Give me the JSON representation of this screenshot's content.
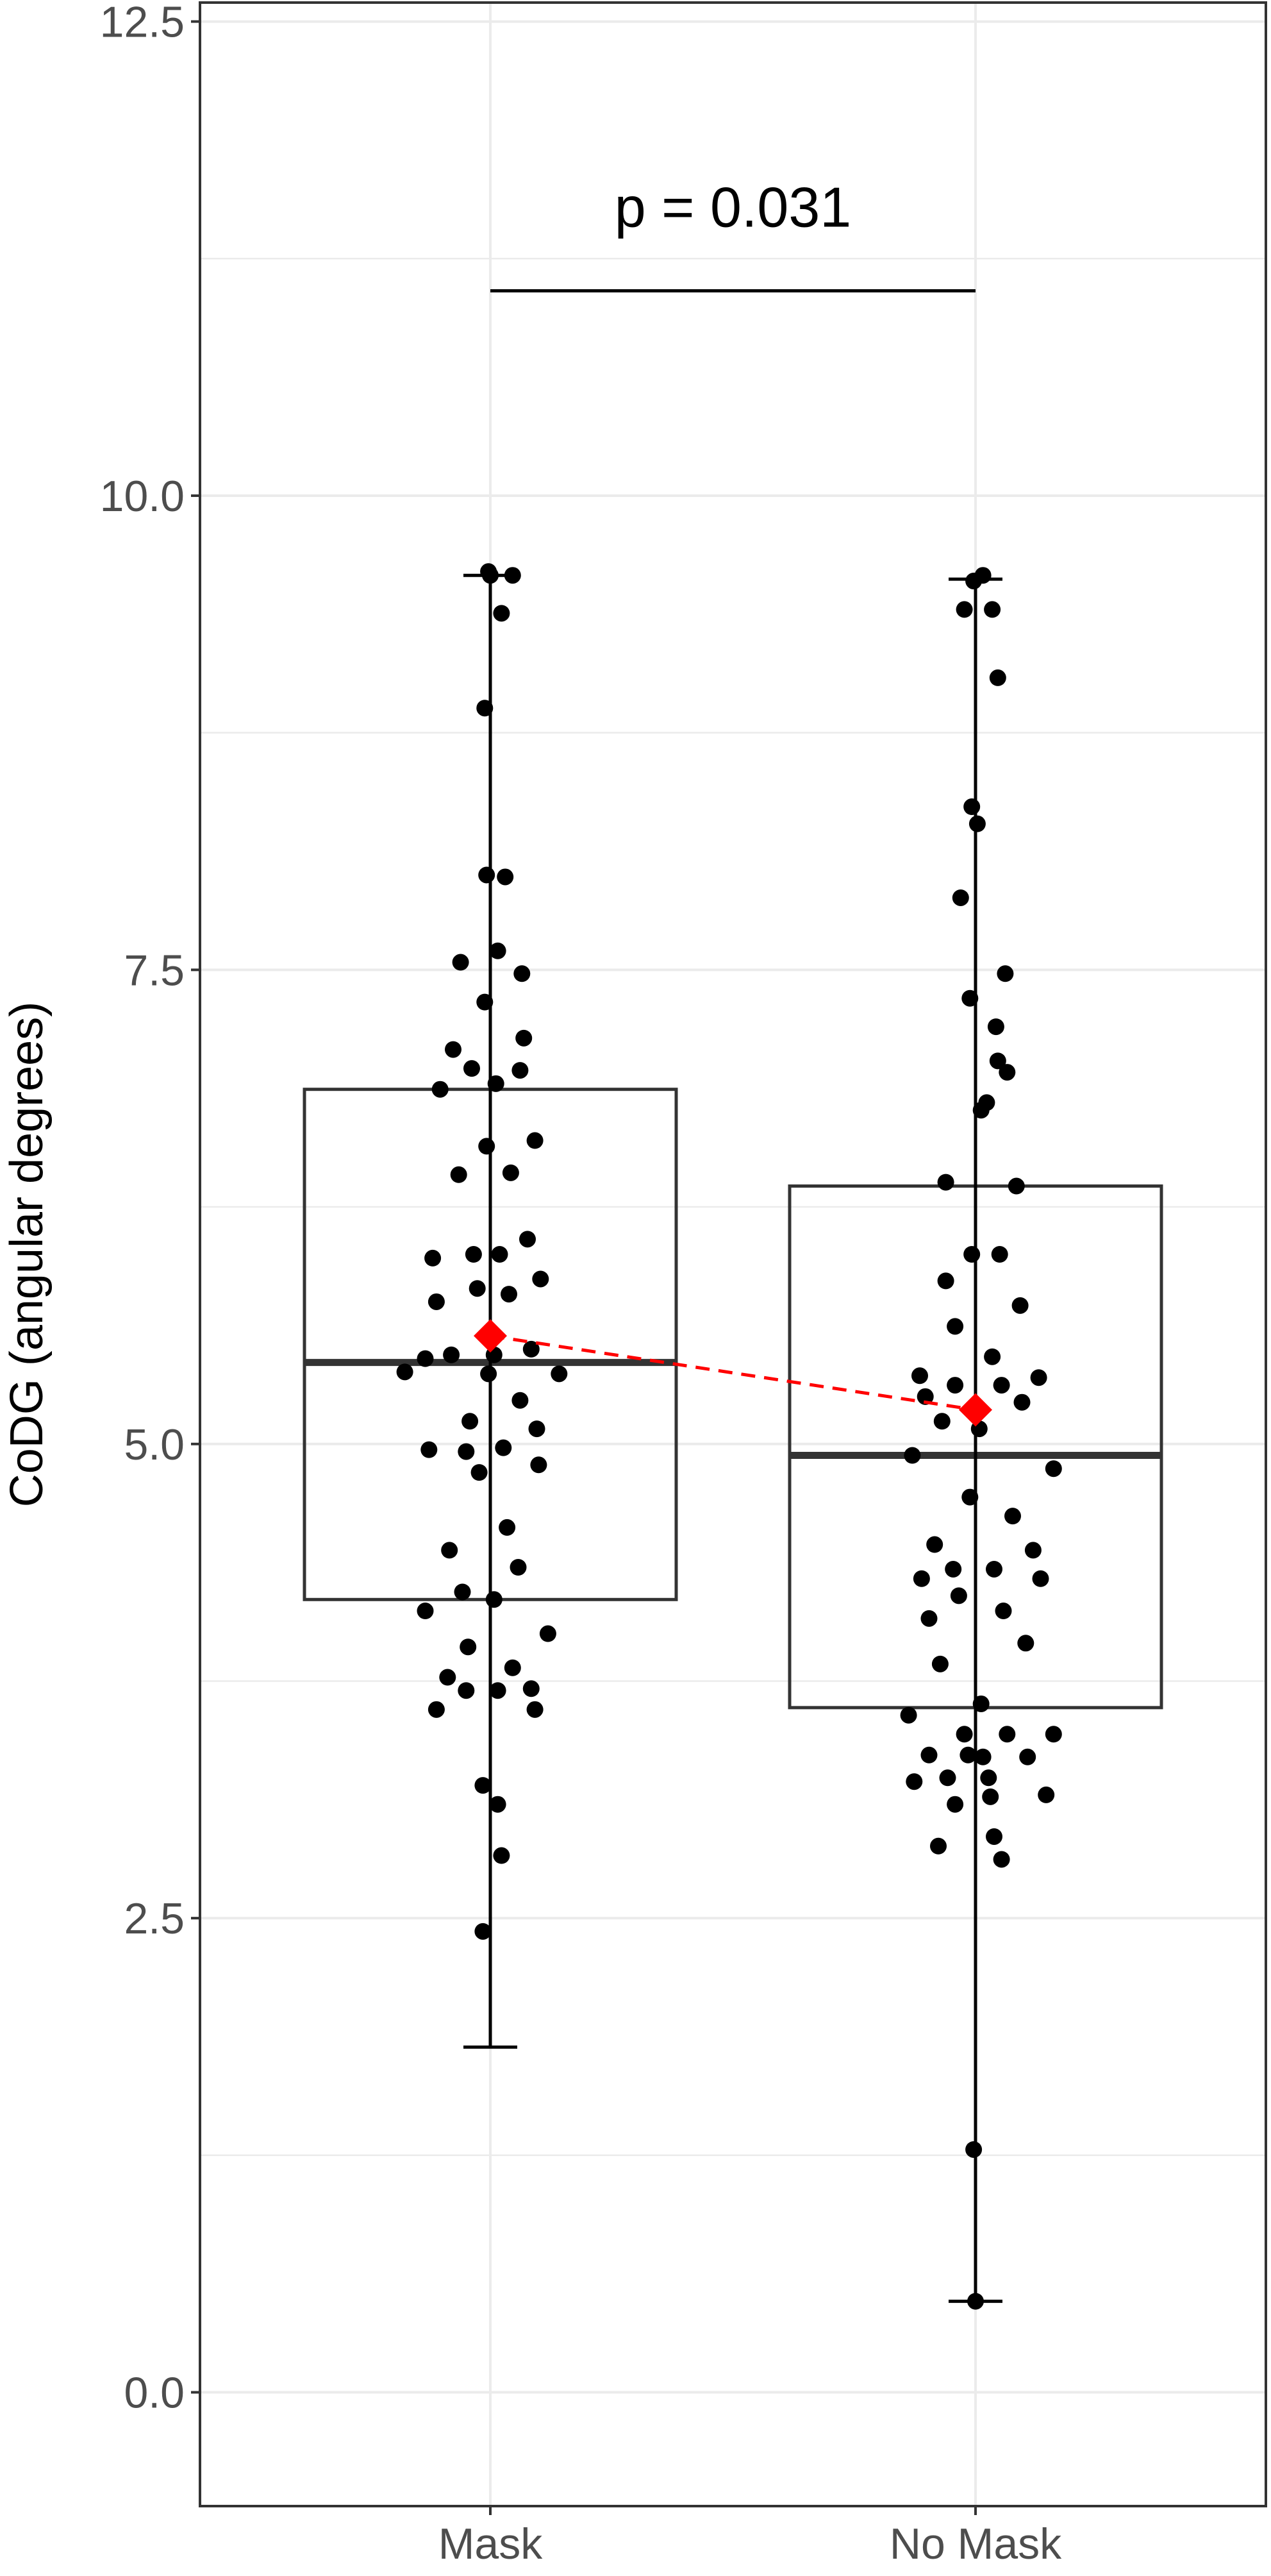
{
  "chart_data": {
    "type": "box",
    "title": "",
    "xlabel": "",
    "ylabel": "CoDG (angular degrees)",
    "ylim": [
      -0.6,
      12.6
    ],
    "yticks": [
      "0.0",
      "2.5",
      "5.0",
      "7.5",
      "10.0",
      "12.5"
    ],
    "grid": true,
    "categories": [
      "Mask",
      "No Mask"
    ],
    "boxes": [
      {
        "category": "Mask",
        "whisker_low": 1.82,
        "q1": 4.18,
        "median": 5.43,
        "q3": 6.87,
        "whisker_high": 9.58,
        "mean": 5.57
      },
      {
        "category": "No Mask",
        "whisker_low": 0.48,
        "q1": 3.61,
        "median": 4.94,
        "q3": 6.36,
        "whisker_high": 9.56,
        "mean": 5.18
      }
    ],
    "points": {
      "Mask": [
        [
          -0.46,
          5.38
        ],
        [
          -0.35,
          4.12
        ],
        [
          -0.29,
          3.6
        ],
        [
          -0.33,
          4.97
        ],
        [
          -0.31,
          5.98
        ],
        [
          -0.29,
          5.75
        ],
        [
          -0.27,
          6.87
        ],
        [
          -0.23,
          3.77
        ],
        [
          -0.22,
          4.44
        ],
        [
          -0.21,
          5.47
        ],
        [
          -0.2,
          7.08
        ],
        [
          -0.17,
          6.42
        ],
        [
          -0.16,
          7.54
        ],
        [
          -0.15,
          4.22
        ],
        [
          -0.13,
          3.7
        ],
        [
          -0.13,
          4.96
        ],
        [
          -0.12,
          3.93
        ],
        [
          -0.11,
          5.12
        ],
        [
          -0.1,
          6.98
        ],
        [
          -0.09,
          6.0
        ],
        [
          -0.07,
          5.82
        ],
        [
          -0.06,
          4.85
        ],
        [
          -0.04,
          3.2
        ],
        [
          -0.04,
          2.43
        ],
        [
          -0.03,
          7.33
        ],
        [
          -0.03,
          8.88
        ],
        [
          -0.02,
          8.0
        ],
        [
          -0.02,
          6.57
        ],
        [
          -0.01,
          5.37
        ],
        [
          -0.01,
          9.6
        ],
        [
          0.0,
          9.58
        ],
        [
          0.02,
          4.18
        ],
        [
          0.02,
          5.47
        ],
        [
          0.03,
          6.9
        ],
        [
          0.04,
          3.7
        ],
        [
          0.04,
          7.6
        ],
        [
          0.04,
          3.1
        ],
        [
          0.05,
          6.0
        ],
        [
          0.06,
          9.38
        ],
        [
          0.06,
          2.83
        ],
        [
          0.07,
          4.98
        ],
        [
          0.08,
          7.99
        ],
        [
          0.09,
          4.56
        ],
        [
          0.1,
          5.79
        ],
        [
          0.11,
          6.43
        ],
        [
          0.12,
          3.82
        ],
        [
          0.12,
          9.58
        ],
        [
          0.15,
          4.35
        ],
        [
          0.16,
          6.97
        ],
        [
          0.16,
          5.23
        ],
        [
          0.17,
          7.48
        ],
        [
          0.18,
          7.14
        ],
        [
          0.2,
          6.08
        ],
        [
          0.22,
          3.71
        ],
        [
          0.22,
          5.5
        ],
        [
          0.24,
          3.6
        ],
        [
          0.24,
          6.6
        ],
        [
          0.25,
          5.08
        ],
        [
          0.26,
          4.89
        ],
        [
          0.27,
          5.87
        ],
        [
          0.31,
          4.0
        ],
        [
          0.37,
          5.37
        ],
        [
          -0.35,
          5.45
        ]
      ],
      "No Mask": [
        [
          -0.36,
          3.57
        ],
        [
          -0.34,
          4.94
        ],
        [
          -0.33,
          3.22
        ],
        [
          -0.3,
          5.36
        ],
        [
          -0.29,
          4.29
        ],
        [
          -0.27,
          5.25
        ],
        [
          -0.25,
          4.08
        ],
        [
          -0.25,
          3.36
        ],
        [
          -0.22,
          4.47
        ],
        [
          -0.2,
          2.88
        ],
        [
          -0.19,
          3.84
        ],
        [
          -0.18,
          5.12
        ],
        [
          -0.16,
          6.38
        ],
        [
          -0.16,
          5.86
        ],
        [
          -0.15,
          3.24
        ],
        [
          -0.12,
          4.34
        ],
        [
          -0.11,
          3.1
        ],
        [
          -0.11,
          5.62
        ],
        [
          -0.11,
          5.31
        ],
        [
          -0.09,
          4.2
        ],
        [
          -0.08,
          7.88
        ],
        [
          -0.06,
          3.47
        ],
        [
          -0.06,
          9.4
        ],
        [
          -0.04,
          3.36
        ],
        [
          -0.03,
          4.72
        ],
        [
          -0.03,
          7.35
        ],
        [
          -0.02,
          8.36
        ],
        [
          -0.02,
          6.0
        ],
        [
          -0.01,
          1.28
        ],
        [
          -0.01,
          9.55
        ],
        [
          0.0,
          0.48
        ],
        [
          0.01,
          8.27
        ],
        [
          0.02,
          5.08
        ],
        [
          0.03,
          3.63
        ],
        [
          0.03,
          6.76
        ],
        [
          0.04,
          9.58
        ],
        [
          0.04,
          3.35
        ],
        [
          0.06,
          6.8
        ],
        [
          0.07,
          3.24
        ],
        [
          0.08,
          3.14
        ],
        [
          0.09,
          5.46
        ],
        [
          0.09,
          9.4
        ],
        [
          0.1,
          4.34
        ],
        [
          0.1,
          2.93
        ],
        [
          0.11,
          7.2
        ],
        [
          0.12,
          9.04
        ],
        [
          0.12,
          7.02
        ],
        [
          0.13,
          6.0
        ],
        [
          0.14,
          5.31
        ],
        [
          0.14,
          2.81
        ],
        [
          0.15,
          4.12
        ],
        [
          0.16,
          7.48
        ],
        [
          0.17,
          6.96
        ],
        [
          0.17,
          3.47
        ],
        [
          0.2,
          4.62
        ],
        [
          0.22,
          6.36
        ],
        [
          0.24,
          5.73
        ],
        [
          0.25,
          5.22
        ],
        [
          0.27,
          3.95
        ],
        [
          0.28,
          3.35
        ],
        [
          0.31,
          4.44
        ],
        [
          0.34,
          5.35
        ],
        [
          0.35,
          4.29
        ],
        [
          0.38,
          3.15
        ],
        [
          0.42,
          4.87
        ],
        [
          0.42,
          3.47
        ]
      ]
    },
    "mean_line": {
      "style": "dashed",
      "color": "#ff0000"
    },
    "annotation": {
      "label": "p = 0.031",
      "y_bracket": 11.08
    },
    "colors": {
      "points": "#000000",
      "mean": "#ff0000",
      "grid": "#ebebeb",
      "box": "#333333"
    }
  }
}
